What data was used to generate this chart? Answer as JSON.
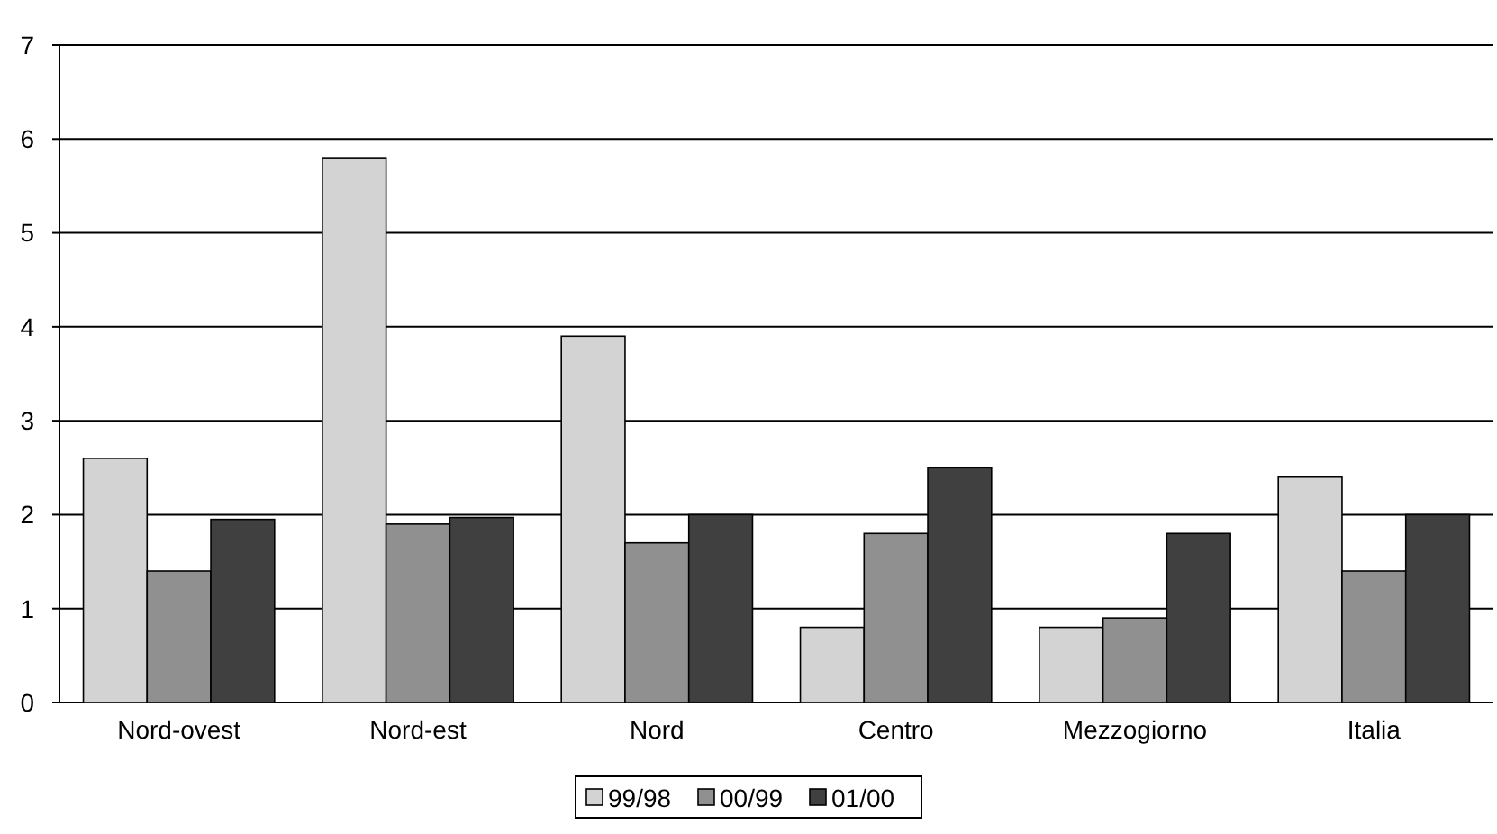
{
  "chart_data": {
    "type": "bar",
    "categories": [
      "Nord-ovest",
      "Nord-est",
      "Nord",
      "Centro",
      "Mezzogiorno",
      "Italia"
    ],
    "series": [
      {
        "name": "99/98",
        "color": "#d3d3d3",
        "values": [
          2.6,
          5.8,
          3.9,
          0.8,
          0.8,
          2.4
        ]
      },
      {
        "name": "00/99",
        "color": "#909090",
        "values": [
          1.4,
          1.9,
          1.7,
          1.8,
          0.9,
          1.4
        ]
      },
      {
        "name": "01/00",
        "color": "#404040",
        "values": [
          1.95,
          1.97,
          2.0,
          2.5,
          1.8,
          2.0
        ]
      }
    ],
    "ylim": [
      0,
      7
    ],
    "yticks": [
      0,
      1,
      2,
      3,
      4,
      5,
      6,
      7
    ],
    "grid": "y",
    "legend": "bottom"
  }
}
